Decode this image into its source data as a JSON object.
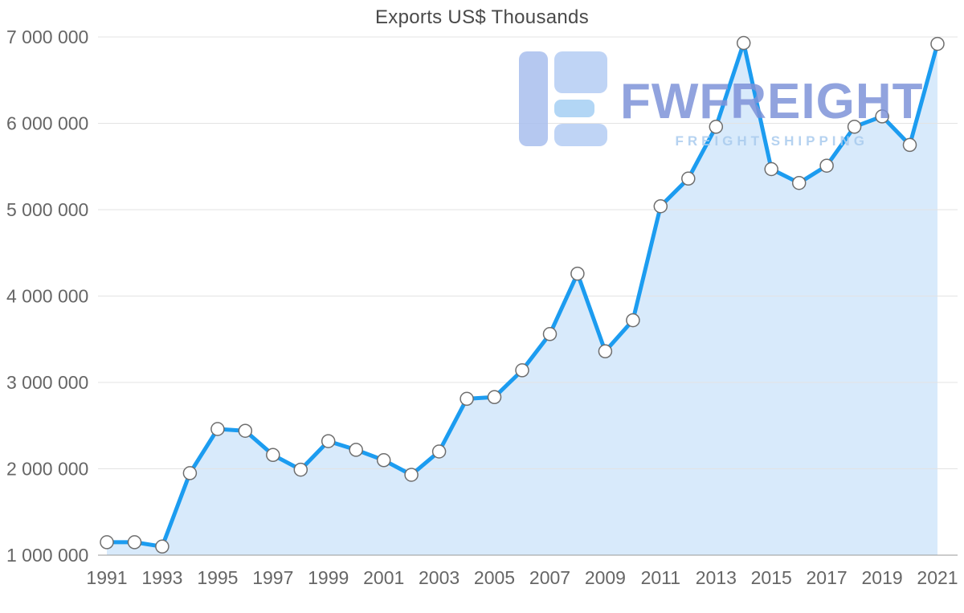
{
  "chart": {
    "title": "Exports US$ Thousands"
  },
  "watermark": {
    "brand": "FWFREIGHT",
    "tagline": "FREIGHT SHIPPING"
  },
  "chart_data": {
    "type": "area",
    "title": "Exports US$ Thousands",
    "x": [
      1991,
      1992,
      1993,
      1994,
      1995,
      1996,
      1997,
      1998,
      1999,
      2000,
      2001,
      2002,
      2003,
      2004,
      2005,
      2006,
      2007,
      2008,
      2009,
      2010,
      2011,
      2012,
      2013,
      2014,
      2015,
      2016,
      2017,
      2018,
      2019,
      2020,
      2021
    ],
    "values": [
      1150000,
      1150000,
      1100000,
      1950000,
      2460000,
      2440000,
      2160000,
      1990000,
      2320000,
      2220000,
      2100000,
      1930000,
      2200000,
      2810000,
      2830000,
      3140000,
      3560000,
      4260000,
      3360000,
      3720000,
      5040000,
      5360000,
      5960000,
      6930000,
      5470000,
      5310000,
      5510000,
      5960000,
      6080000,
      5750000,
      6920000
    ],
    "ylim": [
      1000000,
      7000000
    ],
    "ytick_step": 1000000,
    "xtick_labels": [
      "1991",
      "1993",
      "1995",
      "1997",
      "1999",
      "2001",
      "2003",
      "2005",
      "2007",
      "2009",
      "2011",
      "2013",
      "2015",
      "2017",
      "2019",
      "2021"
    ],
    "grid": true,
    "legend": "none",
    "colors": {
      "line": "#1c9cf0",
      "area": "#d8eafb",
      "marker_fill": "#ffffff",
      "marker_stroke": "#6e6e6e",
      "grid": "#e3e3e3",
      "axis": "#999999",
      "label": "#666666",
      "title": "#4a4a4a"
    }
  }
}
